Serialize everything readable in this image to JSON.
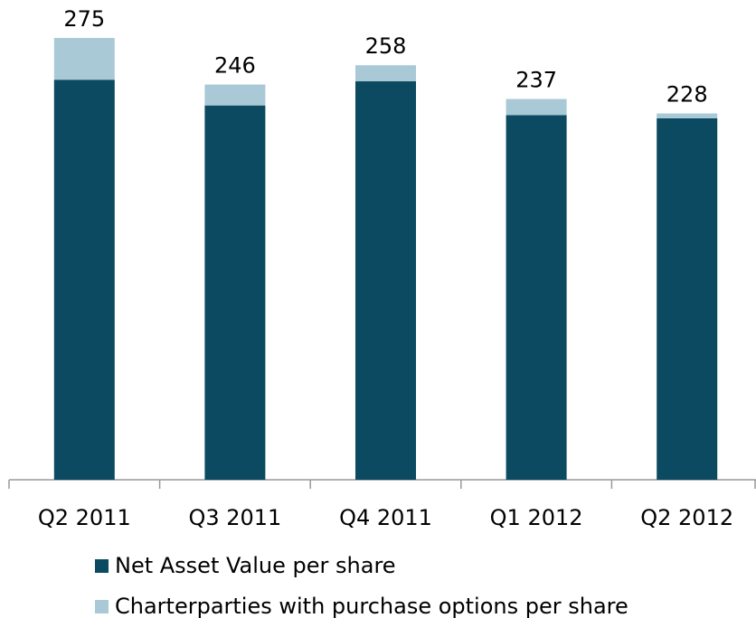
{
  "chart_data": {
    "type": "stacked-bar",
    "categories": [
      "Q2 2011",
      "Q3 2011",
      "Q4 2011",
      "Q1 2012",
      "Q2 2012"
    ],
    "series": [
      {
        "name": "Net Asset Value per share",
        "color": "#0b4a60",
        "values": [
          249,
          233,
          248,
          227,
          225
        ]
      },
      {
        "name": "Charterparties with purchase options per share",
        "color": "#a9c9d6",
        "values": [
          26,
          13,
          10,
          10,
          3
        ]
      }
    ],
    "totals": [
      275,
      246,
      258,
      237,
      228
    ],
    "legend": "bottom"
  }
}
